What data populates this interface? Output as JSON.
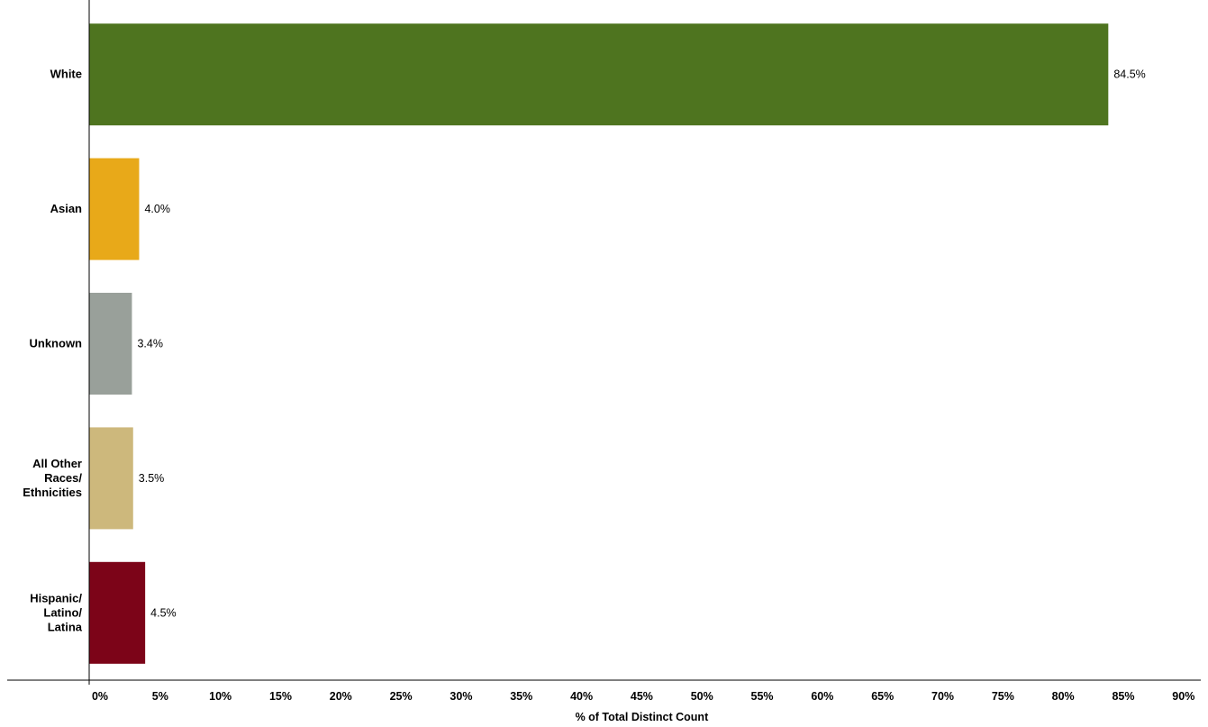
{
  "chart_data": {
    "type": "bar",
    "orientation": "horizontal",
    "categories": [
      [
        "White"
      ],
      [
        "Asian"
      ],
      [
        "Unknown"
      ],
      [
        "All Other",
        "Races/",
        "Ethnicities"
      ],
      [
        "Hispanic/",
        "Latino/",
        "Latina"
      ]
    ],
    "values": [
      84.5,
      4.0,
      3.4,
      3.5,
      4.5
    ],
    "data_labels": [
      "84.5%",
      "4.0%",
      "3.4%",
      "3.5%",
      "4.5%"
    ],
    "colors": [
      "#4e741f",
      "#e8a919",
      "#99a09a",
      "#cdb87c",
      "#7c0418"
    ],
    "xlabel": "% of Total Distinct Count",
    "xlim": [
      0,
      90
    ],
    "x_ticks": [
      0,
      5,
      10,
      15,
      20,
      25,
      30,
      35,
      40,
      45,
      50,
      55,
      60,
      65,
      70,
      75,
      80,
      85,
      90
    ],
    "x_tick_labels": [
      "0%",
      "5%",
      "10%",
      "15%",
      "20%",
      "25%",
      "30%",
      "35%",
      "40%",
      "45%",
      "50%",
      "55%",
      "60%",
      "65%",
      "70%",
      "75%",
      "80%",
      "85%",
      "90%"
    ],
    "grid": false,
    "legend": "none"
  }
}
